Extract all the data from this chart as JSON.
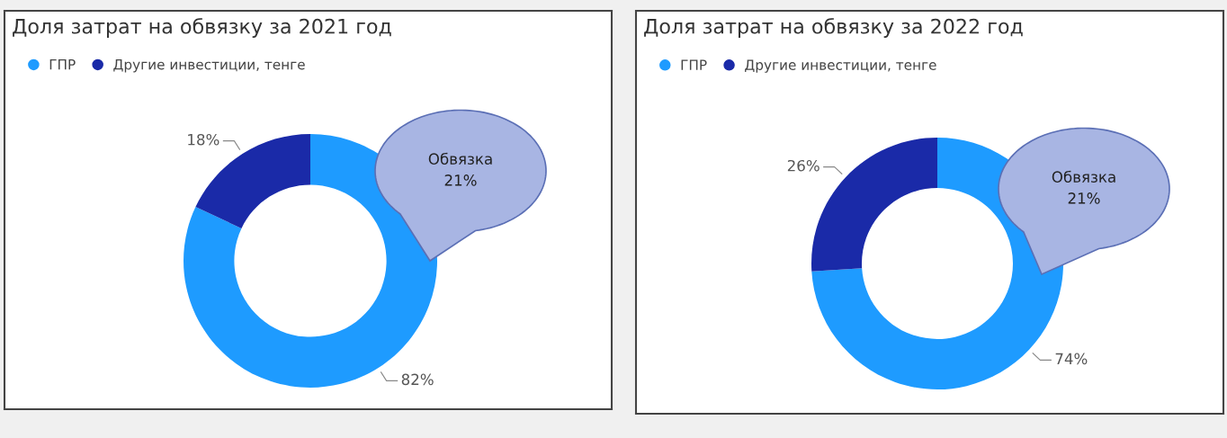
{
  "chart_data": [
    {
      "type": "donut",
      "title": "Доля затрат на обвязку за 2021 год",
      "categories": [
        "ГПР",
        "Другие инвестиции, тенге"
      ],
      "values": [
        82,
        18
      ],
      "colors": [
        "#1e9bff",
        "#1a2aa8"
      ],
      "value_labels": [
        "82%",
        "18%"
      ],
      "legend": "top left",
      "annotations": [
        "Обвязка\n21%"
      ]
    },
    {
      "type": "donut",
      "title": "Доля затрат на обвязку за 2022 год",
      "categories": [
        "ГПР",
        "Другие инвестиции, тенге"
      ],
      "values": [
        74,
        26
      ],
      "colors": [
        "#1e9bff",
        "#1a2aa8"
      ],
      "value_labels": [
        "74%",
        "26%"
      ],
      "legend": "top left",
      "annotations": [
        "Обвязка\n21%"
      ]
    }
  ]
}
